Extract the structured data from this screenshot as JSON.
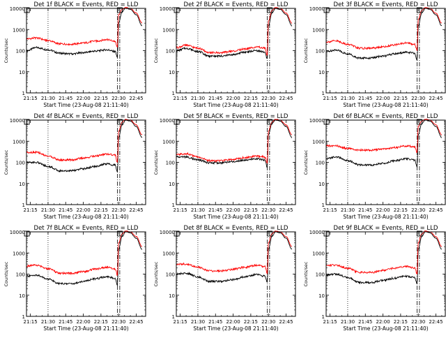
{
  "figure": {
    "xtick_labels": [
      "21:15",
      "21:30",
      "21:45",
      "22:00",
      "22:15",
      "22:30",
      "22:45"
    ],
    "ytick_labels": [
      "1",
      "10",
      "100",
      "1000",
      "10000"
    ],
    "ylabel": "Counts/sec",
    "xlabel": "Start Time (23-Aug-08 21:11:40)",
    "colors": {
      "events": "#000000",
      "lld": "#ff0000",
      "axes": "#000000",
      "background": "#ffffff"
    }
  },
  "chart_data": [
    {
      "type": "line",
      "title": "Det 1f BLACK = Events, RED = LLD",
      "xlabel": "Start Time (23-Aug-08 21:11:40)",
      "ylabel": "Counts/sec",
      "x_axis": "time",
      "xlim": [
        "21:11:40",
        "22:53:00"
      ],
      "ylim": [
        1,
        10000
      ],
      "y_scale": "log",
      "x": [
        "21:12",
        "21:20",
        "21:30",
        "21:40",
        "21:50",
        "22:00",
        "22:10",
        "22:20",
        "22:27",
        "22:29",
        "22:30",
        "22:33",
        "22:36",
        "22:40",
        "22:45",
        "22:50"
      ],
      "series": [
        {
          "name": "Events",
          "values": [
            100,
            140,
            110,
            75,
            70,
            80,
            95,
            110,
            90,
            50,
            2000,
            7000,
            10000,
            9000,
            5000,
            1500
          ]
        },
        {
          "name": "LLD",
          "values": [
            360,
            400,
            300,
            210,
            200,
            230,
            280,
            330,
            280,
            150,
            5000,
            9000,
            11000,
            10000,
            6000,
            2000
          ]
        }
      ],
      "markers": {
        "dotted_vline": "21:30",
        "dashdot_vlines": [
          "22:29",
          "22:31"
        ],
        "squares": [
          "21:12",
          "22:31"
        ]
      }
    },
    {
      "type": "line",
      "title": "Det 2f BLACK = Events, RED = LLD",
      "xlabel": "Start Time (23-Aug-08 21:11:40)",
      "ylabel": "Counts/sec",
      "x_axis": "time",
      "xlim": [
        "21:11:40",
        "22:53:00"
      ],
      "ylim": [
        1,
        10000
      ],
      "y_scale": "log",
      "x": [
        "21:12",
        "21:20",
        "21:30",
        "21:40",
        "21:50",
        "22:00",
        "22:10",
        "22:20",
        "22:27",
        "22:29",
        "22:30",
        "22:33",
        "22:36",
        "22:40",
        "22:45",
        "22:50"
      ],
      "series": [
        {
          "name": "Events",
          "values": [
            100,
            130,
            90,
            55,
            55,
            65,
            85,
            100,
            85,
            40,
            1500,
            6000,
            10000,
            9000,
            5000,
            1500
          ]
        },
        {
          "name": "LLD",
          "values": [
            140,
            180,
            130,
            80,
            80,
            95,
            120,
            150,
            130,
            60,
            2500,
            8000,
            11000,
            10000,
            6000,
            2000
          ]
        }
      ],
      "markers": {
        "dotted_vline": "21:30",
        "dashdot_vlines": [
          "22:29",
          "22:31"
        ],
        "squares": [
          "21:12",
          "22:31"
        ]
      }
    },
    {
      "type": "line",
      "title": "Det 3f BLACK = Events, RED = LLD",
      "xlabel": "Start Time (23-Aug-08 21:11:40)",
      "ylabel": "Counts/sec",
      "x_axis": "time",
      "xlim": [
        "21:11:40",
        "22:53:00"
      ],
      "ylim": [
        1,
        10000
      ],
      "y_scale": "log",
      "x": [
        "21:12",
        "21:20",
        "21:30",
        "21:40",
        "21:50",
        "22:00",
        "22:10",
        "22:20",
        "22:27",
        "22:29",
        "22:30",
        "22:33",
        "22:36",
        "22:40",
        "22:45",
        "22:50"
      ],
      "series": [
        {
          "name": "Events",
          "values": [
            90,
            110,
            70,
            45,
            45,
            55,
            70,
            85,
            75,
            35,
            1500,
            6000,
            10000,
            9000,
            5000,
            1500
          ]
        },
        {
          "name": "LLD",
          "values": [
            260,
            290,
            200,
            130,
            130,
            150,
            190,
            230,
            200,
            100,
            3000,
            8000,
            11000,
            10000,
            6000,
            2000
          ]
        }
      ],
      "markers": {
        "dotted_vline": "21:30",
        "dashdot_vlines": [
          "22:29",
          "22:31"
        ],
        "squares": [
          "21:12",
          "22:31"
        ]
      }
    },
    {
      "type": "line",
      "title": "Det 4f BLACK = Events, RED = LLD",
      "xlabel": "Start Time (23-Aug-08 21:11:40)",
      "ylabel": "Counts/sec",
      "x_axis": "time",
      "xlim": [
        "21:11:40",
        "22:53:00"
      ],
      "ylim": [
        1,
        10000
      ],
      "y_scale": "log",
      "x": [
        "21:12",
        "21:20",
        "21:30",
        "21:40",
        "21:50",
        "22:00",
        "22:10",
        "22:20",
        "22:27",
        "22:29",
        "22:30",
        "22:33",
        "22:36",
        "22:40",
        "22:45",
        "22:50"
      ],
      "series": [
        {
          "name": "Events",
          "values": [
            100,
            100,
            65,
            40,
            40,
            50,
            65,
            85,
            75,
            35,
            1500,
            6000,
            10000,
            9000,
            5000,
            1500
          ]
        },
        {
          "name": "LLD",
          "values": [
            300,
            300,
            200,
            130,
            130,
            160,
            200,
            250,
            220,
            100,
            3000,
            8000,
            11000,
            10000,
            6000,
            2000
          ]
        }
      ],
      "markers": {
        "dotted_vline": "21:30",
        "dashdot_vlines": [
          "22:29",
          "22:31"
        ],
        "squares": [
          "21:12",
          "22:31"
        ]
      }
    },
    {
      "type": "line",
      "title": "Det 5f BLACK = Events, RED = LLD",
      "xlabel": "Start Time (23-Aug-08 21:11:40)",
      "ylabel": "Counts/sec",
      "x_axis": "time",
      "xlim": [
        "21:11:40",
        "22:53:00"
      ],
      "ylim": [
        1,
        10000
      ],
      "y_scale": "log",
      "x": [
        "21:12",
        "21:20",
        "21:30",
        "21:40",
        "21:50",
        "22:00",
        "22:10",
        "22:20",
        "22:27",
        "22:29",
        "22:30",
        "22:33",
        "22:36",
        "22:40",
        "22:45",
        "22:50"
      ],
      "series": [
        {
          "name": "Events",
          "values": [
            180,
            180,
            130,
            95,
            95,
            110,
            130,
            150,
            130,
            60,
            2000,
            7000,
            10000,
            9000,
            5000,
            1500
          ]
        },
        {
          "name": "LLD",
          "values": [
            230,
            260,
            180,
            120,
            120,
            140,
            170,
            200,
            180,
            90,
            3000,
            8000,
            11000,
            10000,
            6000,
            2000
          ]
        }
      ],
      "markers": {
        "dotted_vline": "21:30",
        "dashdot_vlines": [
          "22:29",
          "22:31"
        ],
        "squares": [
          "21:12",
          "22:31"
        ]
      }
    },
    {
      "type": "line",
      "title": "Det 6f BLACK = Events, RED = LLD",
      "xlabel": "Start Time (23-Aug-08 21:11:40)",
      "ylabel": "Counts/sec",
      "x_axis": "time",
      "xlim": [
        "21:11:40",
        "22:53:00"
      ],
      "ylim": [
        1,
        10000
      ],
      "y_scale": "log",
      "x": [
        "21:12",
        "21:20",
        "21:30",
        "21:40",
        "21:50",
        "22:00",
        "22:10",
        "22:20",
        "22:27",
        "22:29",
        "22:30",
        "22:33",
        "22:36",
        "22:40",
        "22:45",
        "22:50"
      ],
      "series": [
        {
          "name": "Events",
          "values": [
            150,
            180,
            120,
            75,
            75,
            90,
            120,
            150,
            130,
            60,
            2000,
            7000,
            10000,
            9000,
            5000,
            1500
          ]
        },
        {
          "name": "LLD",
          "values": [
            600,
            600,
            450,
            380,
            380,
            420,
            500,
            600,
            550,
            300,
            5000,
            9000,
            11000,
            10000,
            6000,
            2000
          ]
        }
      ],
      "markers": {
        "dotted_vline": "21:30",
        "dashdot_vlines": [
          "22:29",
          "22:31"
        ],
        "squares": [
          "21:12",
          "22:31"
        ]
      }
    },
    {
      "type": "line",
      "title": "Det 7f BLACK = Events, RED = LLD",
      "xlabel": "Start Time (23-Aug-08 21:11:40)",
      "ylabel": "Counts/sec",
      "x_axis": "time",
      "xlim": [
        "21:11:40",
        "22:53:00"
      ],
      "ylim": [
        1,
        10000
      ],
      "y_scale": "log",
      "x": [
        "21:12",
        "21:20",
        "21:30",
        "21:40",
        "21:50",
        "22:00",
        "22:10",
        "22:20",
        "22:27",
        "22:29",
        "22:30",
        "22:33",
        "22:36",
        "22:40",
        "22:45",
        "22:50"
      ],
      "series": [
        {
          "name": "Events",
          "values": [
            80,
            90,
            60,
            35,
            35,
            45,
            60,
            75,
            65,
            30,
            1500,
            6000,
            10000,
            9000,
            5000,
            1500
          ]
        },
        {
          "name": "LLD",
          "values": [
            240,
            260,
            180,
            110,
            110,
            130,
            170,
            210,
            180,
            90,
            3000,
            8000,
            11000,
            10000,
            6000,
            2000
          ]
        }
      ],
      "markers": {
        "dotted_vline": "21:30",
        "dashdot_vlines": [
          "22:29",
          "22:31"
        ],
        "squares": [
          "21:12",
          "22:31"
        ]
      }
    },
    {
      "type": "line",
      "title": "Det 8f BLACK = Events, RED = LLD",
      "xlabel": "Start Time (23-Aug-08 21:11:40)",
      "ylabel": "Counts/sec",
      "x_axis": "time",
      "xlim": [
        "21:11:40",
        "22:53:00"
      ],
      "ylim": [
        1,
        10000
      ],
      "y_scale": "log",
      "x": [
        "21:12",
        "21:20",
        "21:30",
        "21:40",
        "21:50",
        "22:00",
        "22:10",
        "22:20",
        "22:27",
        "22:29",
        "22:30",
        "22:33",
        "22:36",
        "22:40",
        "22:45",
        "22:50"
      ],
      "series": [
        {
          "name": "Events",
          "values": [
            100,
            110,
            75,
            45,
            45,
            55,
            75,
            95,
            80,
            40,
            1500,
            6000,
            10000,
            9000,
            5000,
            1500
          ]
        },
        {
          "name": "LLD",
          "values": [
            290,
            300,
            210,
            140,
            140,
            170,
            210,
            260,
            230,
            110,
            3000,
            8000,
            11000,
            10000,
            6000,
            2000
          ]
        }
      ],
      "markers": {
        "dotted_vline": "21:30",
        "dashdot_vlines": [
          "22:29",
          "22:31"
        ],
        "squares": [
          "21:12",
          "22:31"
        ]
      }
    },
    {
      "type": "line",
      "title": "Det 9f BLACK = Events, RED = LLD",
      "xlabel": "Start Time (23-Aug-08 21:11:40)",
      "ylabel": "Counts/sec",
      "x_axis": "time",
      "xlim": [
        "21:11:40",
        "22:53:00"
      ],
      "ylim": [
        1,
        10000
      ],
      "y_scale": "log",
      "x": [
        "21:12",
        "21:20",
        "21:30",
        "21:40",
        "21:50",
        "22:00",
        "22:10",
        "22:20",
        "22:27",
        "22:29",
        "22:30",
        "22:33",
        "22:36",
        "22:40",
        "22:45",
        "22:50"
      ],
      "series": [
        {
          "name": "Events",
          "values": [
            90,
            100,
            70,
            40,
            40,
            50,
            65,
            80,
            70,
            35,
            1500,
            6000,
            10000,
            9000,
            5000,
            1500
          ]
        },
        {
          "name": "LLD",
          "values": [
            260,
            270,
            190,
            120,
            120,
            150,
            190,
            230,
            200,
            100,
            3000,
            8000,
            11000,
            10000,
            6000,
            2000
          ]
        }
      ],
      "markers": {
        "dotted_vline": "21:30",
        "dashdot_vlines": [
          "22:29",
          "22:31"
        ],
        "squares": [
          "21:12",
          "22:31"
        ]
      }
    }
  ]
}
